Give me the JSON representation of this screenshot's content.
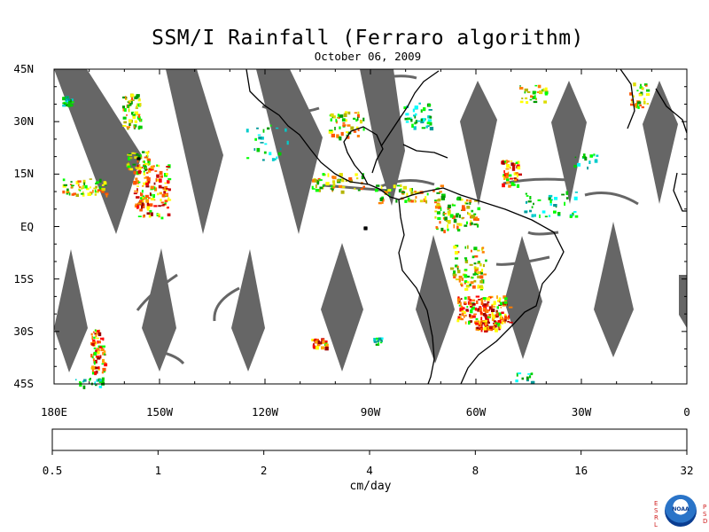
{
  "header": {
    "title": "SSM/I Rainfall (Ferraro algorithm)",
    "date": "October 06, 2009"
  },
  "map": {
    "lat_labels": [
      "45N",
      "30N",
      "15N",
      "EQ",
      "15S",
      "30S",
      "45S"
    ],
    "lon_labels": [
      "180E",
      "150W",
      "120W",
      "90W",
      "60W",
      "30W",
      "0"
    ],
    "gap_color": "#666666",
    "coast_color": "#000000"
  },
  "colorbar": {
    "colors": [
      "#000f85",
      "#0033c0",
      "#0a5cff",
      "#009999",
      "#00cccc",
      "#00ffff",
      "#009900",
      "#00cc00",
      "#00ff00",
      "#b3b300",
      "#dddd00",
      "#ffff00",
      "#ff5500",
      "#ff7f00",
      "#ffa500",
      "#990000",
      "#cc0000",
      "#ff0000"
    ],
    "tick_labels": [
      "0.5",
      "1",
      "2",
      "4",
      "8",
      "16",
      "32"
    ],
    "unit": "cm/day"
  },
  "logo": {
    "left_letters": [
      "E",
      "S",
      "R",
      "L"
    ],
    "right_letters": [
      "P",
      "S",
      "D"
    ],
    "center_text": "NOAA"
  }
}
